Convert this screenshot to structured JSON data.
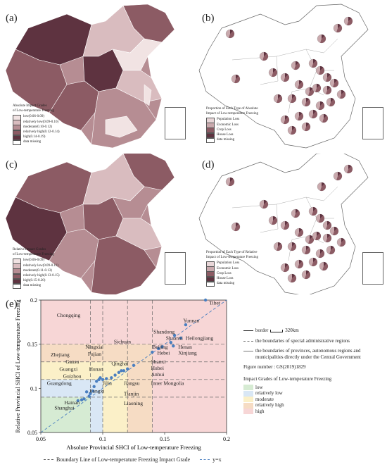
{
  "panels": {
    "a": {
      "label": "(a)",
      "legend_title": [
        "Absolute Impact Grades",
        "of Low-temperature Freezing"
      ],
      "legend_items": [
        {
          "text": "low(0.06-0.09)",
          "color": "#f1e3e3"
        },
        {
          "text": "relatively low(0.09-0.10)",
          "color": "#d9bcbf"
        },
        {
          "text": "moderate(0.10-0.12)",
          "color": "#b68d93"
        },
        {
          "text": "relatively high(0.12-0.14)",
          "color": "#8c5b64"
        },
        {
          "text": "high(0.14-0.19)",
          "color": "#5e3340"
        },
        {
          "text": "data missing",
          "color": "#ffffff"
        }
      ]
    },
    "b": {
      "label": "(b)",
      "legend_title": [
        "Proportion of Each Type of Absolute",
        "Impact of Low-temperature Freezing"
      ],
      "legend_items": [
        {
          "text": "Population Loss",
          "color": "#e8d6d8"
        },
        {
          "text": "Economic Loss",
          "color": "#c9a9ad"
        },
        {
          "text": "Crop Loss",
          "color": "#8c5b64"
        },
        {
          "text": "House Loss",
          "color": "#5e3340"
        },
        {
          "text": "data missing",
          "color": "#ffffff"
        }
      ]
    },
    "c": {
      "label": "(c)",
      "legend_title": [
        "Relative Impact Grades",
        "of Low-temperature Freezing"
      ],
      "legend_items": [
        {
          "text": "low(0.06-0.09)",
          "color": "#f1e3e3"
        },
        {
          "text": "relatively low(0.09-0.11)",
          "color": "#d9bcbf"
        },
        {
          "text": "moderate(0.11-0.13)",
          "color": "#b68d93"
        },
        {
          "text": "relatively high(0.13-0.15)",
          "color": "#8c5b64"
        },
        {
          "text": "high(0.15-0.20)",
          "color": "#5e3340"
        },
        {
          "text": "data missing",
          "color": "#ffffff"
        }
      ]
    },
    "d": {
      "label": "(d)",
      "legend_title": [
        "Proportion of Each Type of Relative",
        "Impact of Low-temperature Freezing"
      ],
      "legend_items": [
        {
          "text": "Population Loss",
          "color": "#e8d6d8"
        },
        {
          "text": "Economic Loss",
          "color": "#c9a9ad"
        },
        {
          "text": "Crop Loss",
          "color": "#8c5b64"
        },
        {
          "text": "House Loss",
          "color": "#5e3340"
        },
        {
          "text": "data missing",
          "color": "#ffffff"
        }
      ]
    }
  },
  "panel_e": {
    "label": "(e)",
    "map_legend": {
      "border": "border",
      "scale": "320km",
      "special_boundaries": "the boundaries of special administrative regions",
      "province_boundaries": [
        "the boundaries of provinces, autonomous regions and",
        "municipalities directly under the Central Government"
      ],
      "figure_number": "Figure number : GS(2019)1829"
    },
    "grade_legend": {
      "title": "Impact Grades of Low-temperature Freezing",
      "items": [
        {
          "text": "low",
          "color": "#d6ebd3"
        },
        {
          "text": "relatively low",
          "color": "#d9e7f5"
        },
        {
          "text": "moderate",
          "color": "#fbf0c8"
        },
        {
          "text": "relatively high",
          "color": "#f6dcc4"
        },
        {
          "text": "high",
          "color": "#f7d6d6"
        }
      ]
    },
    "bottom_legend": {
      "boundary": "Boundary Line of Low-temperature Freezing Impact Grade",
      "yx": "y=x"
    }
  },
  "chart_data": {
    "type": "scatter",
    "title": "",
    "xlabel": "Absolute Provincial SHCI of Low-temperature Freezing",
    "ylabel": "Relative Provincial SHCI of Low-temperature Freezing",
    "xlim": [
      0.05,
      0.2
    ],
    "ylim": [
      0.05,
      0.2
    ],
    "xticks": [
      "0.05",
      "0.1",
      "0.15",
      "0.2"
    ],
    "yticks": [
      "0.05",
      "0.1",
      "0.15",
      "0.2"
    ],
    "x_boundaries": [
      0.09,
      0.1,
      0.12,
      0.14
    ],
    "y_boundaries": [
      0.09,
      0.11,
      0.13,
      0.15
    ],
    "points": [
      {
        "x": 0.183,
        "y": 0.2
      },
      {
        "x": 0.167,
        "y": 0.172
      },
      {
        "x": 0.158,
        "y": 0.16
      },
      {
        "x": 0.163,
        "y": 0.157
      },
      {
        "x": 0.155,
        "y": 0.152
      },
      {
        "x": 0.157,
        "y": 0.148
      },
      {
        "x": 0.148,
        "y": 0.147
      },
      {
        "x": 0.145,
        "y": 0.145
      },
      {
        "x": 0.14,
        "y": 0.141
      },
      {
        "x": 0.125,
        "y": 0.126
      },
      {
        "x": 0.12,
        "y": 0.122
      },
      {
        "x": 0.117,
        "y": 0.12
      },
      {
        "x": 0.115,
        "y": 0.12
      },
      {
        "x": 0.113,
        "y": 0.118
      },
      {
        "x": 0.11,
        "y": 0.115
      },
      {
        "x": 0.107,
        "y": 0.112
      },
      {
        "x": 0.103,
        "y": 0.111
      },
      {
        "x": 0.1,
        "y": 0.11
      },
      {
        "x": 0.098,
        "y": 0.112
      },
      {
        "x": 0.097,
        "y": 0.11
      },
      {
        "x": 0.095,
        "y": 0.108
      },
      {
        "x": 0.093,
        "y": 0.102
      },
      {
        "x": 0.092,
        "y": 0.097
      },
      {
        "x": 0.09,
        "y": 0.094
      },
      {
        "x": 0.089,
        "y": 0.091
      },
      {
        "x": 0.087,
        "y": 0.096
      },
      {
        "x": 0.085,
        "y": 0.088
      },
      {
        "x": 0.083,
        "y": 0.087
      },
      {
        "x": 0.08,
        "y": 0.086
      }
    ],
    "point_labels": [
      {
        "text": "Tibet",
        "x": 0.186,
        "y": 0.195
      },
      {
        "text": "Chongqing",
        "x": 0.063,
        "y": 0.181
      },
      {
        "text": "Yunnan",
        "x": 0.165,
        "y": 0.175
      },
      {
        "text": "Shandong",
        "x": 0.141,
        "y": 0.162
      },
      {
        "text": "Shaanxi",
        "x": 0.151,
        "y": 0.155
      },
      {
        "text": "Heilongjiang",
        "x": 0.167,
        "y": 0.155
      },
      {
        "text": "Sichuan",
        "x": 0.109,
        "y": 0.151
      },
      {
        "text": "Ningxia",
        "x": 0.086,
        "y": 0.145
      },
      {
        "text": "Beijing",
        "x": 0.14,
        "y": 0.145
      },
      {
        "text": "Henan",
        "x": 0.161,
        "y": 0.145
      },
      {
        "text": "Zhejiang",
        "x": 0.058,
        "y": 0.136
      },
      {
        "text": "Fujian",
        "x": 0.088,
        "y": 0.137
      },
      {
        "text": "Hebei",
        "x": 0.144,
        "y": 0.138
      },
      {
        "text": "Xinjiang",
        "x": 0.161,
        "y": 0.138
      },
      {
        "text": "Gansu",
        "x": 0.07,
        "y": 0.128
      },
      {
        "text": "Qinghai",
        "x": 0.107,
        "y": 0.126
      },
      {
        "text": "Shanxi",
        "x": 0.139,
        "y": 0.128
      },
      {
        "text": "Guangxi",
        "x": 0.065,
        "y": 0.12
      },
      {
        "text": "Hunan",
        "x": 0.089,
        "y": 0.12
      },
      {
        "text": "Hubei",
        "x": 0.139,
        "y": 0.121
      },
      {
        "text": "Guizhou",
        "x": 0.068,
        "y": 0.112
      },
      {
        "text": "Anhui",
        "x": 0.139,
        "y": 0.114
      },
      {
        "text": "Guangdong",
        "x": 0.055,
        "y": 0.104
      },
      {
        "text": "Jilin",
        "x": 0.1,
        "y": 0.104
      },
      {
        "text": "Jiangsu",
        "x": 0.117,
        "y": 0.104
      },
      {
        "text": "Inner Mongolia",
        "x": 0.139,
        "y": 0.104
      },
      {
        "text": "Jiangxi",
        "x": 0.089,
        "y": 0.095
      },
      {
        "text": "Tianjin",
        "x": 0.117,
        "y": 0.092
      },
      {
        "text": "Hainan",
        "x": 0.069,
        "y": 0.082
      },
      {
        "text": "Liaoning",
        "x": 0.117,
        "y": 0.081
      },
      {
        "text": "Shanghai",
        "x": 0.061,
        "y": 0.076
      }
    ]
  },
  "colors": {
    "grade_low": "#d6ebd3",
    "grade_rlow": "#d9e7f5",
    "grade_mod": "#fbf0c8",
    "grade_rhigh": "#f6dcc4",
    "grade_high": "#f7d6d6",
    "point": "#4a7fc0"
  }
}
